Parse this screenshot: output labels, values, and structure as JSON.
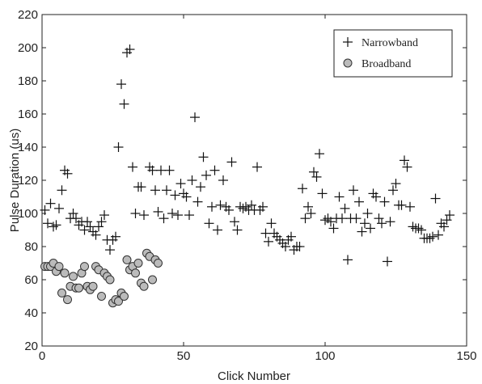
{
  "chart_data": {
    "type": "scatter",
    "title": "",
    "xlabel": "Click Number",
    "ylabel": "Pulse Duration (us)",
    "xlim": [
      0,
      150
    ],
    "ylim": [
      20,
      220
    ],
    "xticks": [
      0,
      50,
      100,
      150
    ],
    "yticks": [
      20,
      40,
      60,
      80,
      100,
      120,
      140,
      160,
      180,
      200,
      220
    ],
    "grid": false,
    "legend_position": "top-right",
    "series": [
      {
        "name": "Narrowband",
        "marker": "plus",
        "color": "#111111",
        "points": [
          [
            1,
            102
          ],
          [
            2,
            94
          ],
          [
            3,
            106
          ],
          [
            4,
            92
          ],
          [
            5,
            93
          ],
          [
            6,
            103
          ],
          [
            7,
            114
          ],
          [
            8,
            126
          ],
          [
            9,
            124
          ],
          [
            10,
            97
          ],
          [
            11,
            100
          ],
          [
            12,
            97
          ],
          [
            13,
            93
          ],
          [
            14,
            95
          ],
          [
            15,
            90
          ],
          [
            16,
            95
          ],
          [
            17,
            92
          ],
          [
            18,
            89
          ],
          [
            19,
            87
          ],
          [
            20,
            92
          ],
          [
            21,
            95
          ],
          [
            22,
            99
          ],
          [
            23,
            84
          ],
          [
            24,
            78
          ],
          [
            25,
            84
          ],
          [
            26,
            86
          ],
          [
            27,
            140
          ],
          [
            28,
            178
          ],
          [
            29,
            166
          ],
          [
            30,
            197
          ],
          [
            31,
            199
          ],
          [
            32,
            128
          ],
          [
            33,
            100
          ],
          [
            34,
            116
          ],
          [
            35,
            116
          ],
          [
            36,
            99
          ],
          [
            38,
            128
          ],
          [
            39,
            126
          ],
          [
            40,
            114
          ],
          [
            41,
            101
          ],
          [
            42,
            126
          ],
          [
            43,
            97
          ],
          [
            44,
            114
          ],
          [
            45,
            126
          ],
          [
            46,
            100
          ],
          [
            47,
            111
          ],
          [
            48,
            99
          ],
          [
            49,
            118
          ],
          [
            50,
            112
          ],
          [
            51,
            110
          ],
          [
            52,
            99
          ],
          [
            53,
            120
          ],
          [
            54,
            158
          ],
          [
            55,
            107
          ],
          [
            56,
            116
          ],
          [
            57,
            134
          ],
          [
            58,
            123
          ],
          [
            59,
            94
          ],
          [
            60,
            104
          ],
          [
            61,
            126
          ],
          [
            62,
            90
          ],
          [
            63,
            105
          ],
          [
            64,
            120
          ],
          [
            65,
            104
          ],
          [
            66,
            102
          ],
          [
            67,
            131
          ],
          [
            68,
            95
          ],
          [
            69,
            90
          ],
          [
            70,
            104
          ],
          [
            71,
            103
          ],
          [
            72,
            104
          ],
          [
            73,
            102
          ],
          [
            74,
            105
          ],
          [
            75,
            102
          ],
          [
            76,
            128
          ],
          [
            77,
            102
          ],
          [
            78,
            104
          ],
          [
            79,
            88
          ],
          [
            80,
            83
          ],
          [
            81,
            94
          ],
          [
            82,
            88
          ],
          [
            83,
            86
          ],
          [
            84,
            84
          ],
          [
            85,
            82
          ],
          [
            86,
            80
          ],
          [
            87,
            84
          ],
          [
            88,
            86
          ],
          [
            89,
            78
          ],
          [
            90,
            80
          ],
          [
            91,
            80
          ],
          [
            92,
            115
          ],
          [
            93,
            97
          ],
          [
            94,
            104
          ],
          [
            95,
            100
          ],
          [
            96,
            125
          ],
          [
            97,
            122
          ],
          [
            98,
            136
          ],
          [
            99,
            112
          ],
          [
            100,
            96
          ],
          [
            101,
            97
          ],
          [
            102,
            95
          ],
          [
            103,
            91
          ],
          [
            104,
            97
          ],
          [
            105,
            110
          ],
          [
            106,
            97
          ],
          [
            107,
            103
          ],
          [
            108,
            72
          ],
          [
            109,
            97
          ],
          [
            110,
            114
          ],
          [
            111,
            97
          ],
          [
            112,
            107
          ],
          [
            113,
            89
          ],
          [
            114,
            94
          ],
          [
            115,
            100
          ],
          [
            116,
            91
          ],
          [
            117,
            112
          ],
          [
            118,
            110
          ],
          [
            119,
            97
          ],
          [
            120,
            94
          ],
          [
            121,
            107
          ],
          [
            122,
            71
          ],
          [
            123,
            95
          ],
          [
            124,
            114
          ],
          [
            125,
            118
          ],
          [
            126,
            105
          ],
          [
            127,
            105
          ],
          [
            128,
            132
          ],
          [
            129,
            128
          ],
          [
            130,
            104
          ],
          [
            131,
            92
          ],
          [
            132,
            91
          ],
          [
            133,
            91
          ],
          [
            134,
            90
          ],
          [
            135,
            85
          ],
          [
            136,
            85
          ],
          [
            137,
            85
          ],
          [
            138,
            86
          ],
          [
            139,
            109
          ],
          [
            140,
            87
          ],
          [
            141,
            94
          ],
          [
            142,
            92
          ],
          [
            143,
            96
          ],
          [
            144,
            99
          ]
        ]
      },
      {
        "name": "Broadband",
        "marker": "circle",
        "color": "#bbbbbb",
        "points": [
          [
            1,
            68
          ],
          [
            2,
            68
          ],
          [
            3,
            68
          ],
          [
            4,
            70
          ],
          [
            5,
            65
          ],
          [
            6,
            68
          ],
          [
            7,
            52
          ],
          [
            8,
            64
          ],
          [
            9,
            48
          ],
          [
            10,
            56
          ],
          [
            11,
            62
          ],
          [
            12,
            55
          ],
          [
            13,
            55
          ],
          [
            14,
            64
          ],
          [
            15,
            68
          ],
          [
            16,
            56
          ],
          [
            17,
            54
          ],
          [
            18,
            56
          ],
          [
            19,
            68
          ],
          [
            20,
            66
          ],
          [
            21,
            50
          ],
          [
            22,
            64
          ],
          [
            23,
            62
          ],
          [
            24,
            60
          ],
          [
            25,
            46
          ],
          [
            26,
            48
          ],
          [
            27,
            47
          ],
          [
            28,
            52
          ],
          [
            29,
            50
          ],
          [
            30,
            72
          ],
          [
            31,
            66
          ],
          [
            32,
            68
          ],
          [
            33,
            64
          ],
          [
            34,
            70
          ],
          [
            35,
            58
          ],
          [
            36,
            56
          ],
          [
            37,
            76
          ],
          [
            38,
            74
          ],
          [
            39,
            60
          ],
          [
            40,
            72
          ],
          [
            41,
            70
          ]
        ]
      }
    ]
  }
}
